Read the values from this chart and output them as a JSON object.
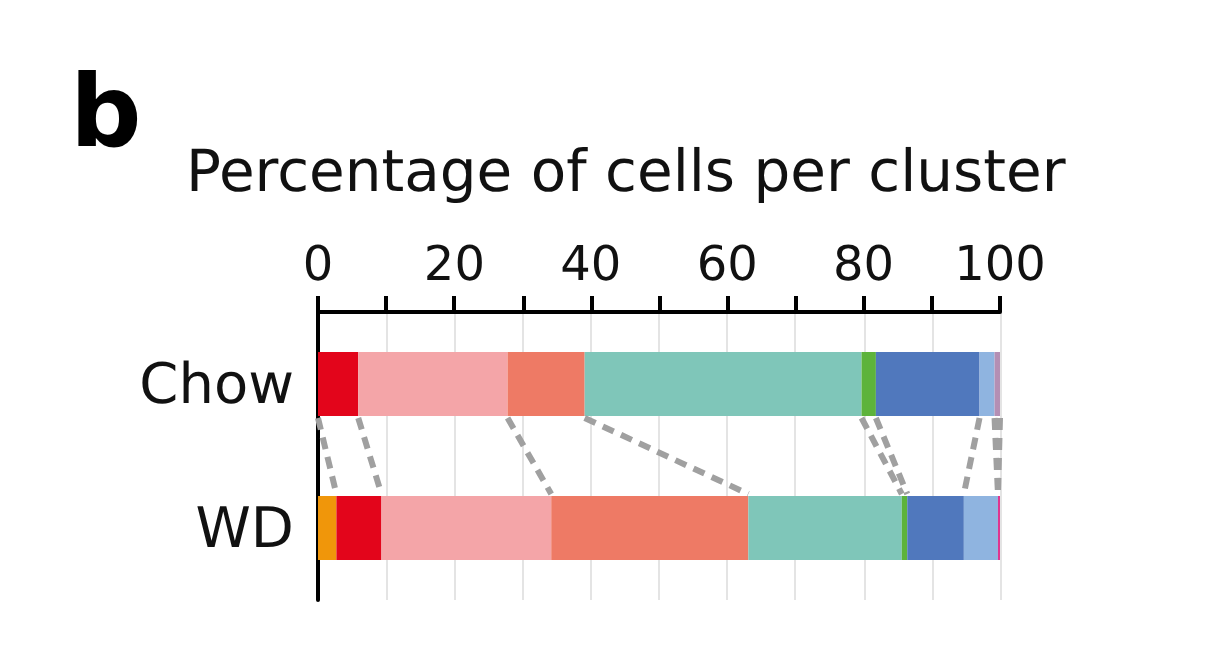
{
  "chart_data": {
    "type": "bar",
    "orientation": "horizontal",
    "stacked": true,
    "title": "Percentage of cells per cluster",
    "annotations": [
      "b"
    ],
    "categories": [
      "Chow",
      "WD"
    ],
    "series": [
      {
        "color": "#f0960a",
        "values": [
          0,
          2.7
        ]
      },
      {
        "color": "#e3051b",
        "values": [
          5.9,
          6.6
        ]
      },
      {
        "color": "#f4a5a8",
        "values": [
          21.9,
          24.9
        ]
      },
      {
        "color": "#ee7a65",
        "values": [
          11.3,
          28.9
        ]
      },
      {
        "color": "#7fc6b9",
        "values": [
          40.6,
          22.5
        ]
      },
      {
        "color": "#5db33b",
        "values": [
          2.1,
          0.8
        ]
      },
      {
        "color": "#5078bd",
        "values": [
          15.2,
          8.3
        ]
      },
      {
        "color": "#8fb4e0",
        "values": [
          2.2,
          5.0
        ]
      },
      {
        "color": "#b48fb4",
        "values": [
          0.8,
          0
        ]
      },
      {
        "color": "#e0358f",
        "values": [
          0,
          0.3
        ]
      }
    ],
    "xlim": [
      0,
      100
    ],
    "xticks": [
      0,
      {
        "value": 10,
        "label": null
      },
      20,
      {
        "value": 30,
        "label": null
      },
      40,
      {
        "value": 50,
        "label": null
      },
      60,
      {
        "value": 70,
        "label": null
      },
      80,
      {
        "value": 90,
        "label": null
      },
      100
    ],
    "grid": "x"
  }
}
